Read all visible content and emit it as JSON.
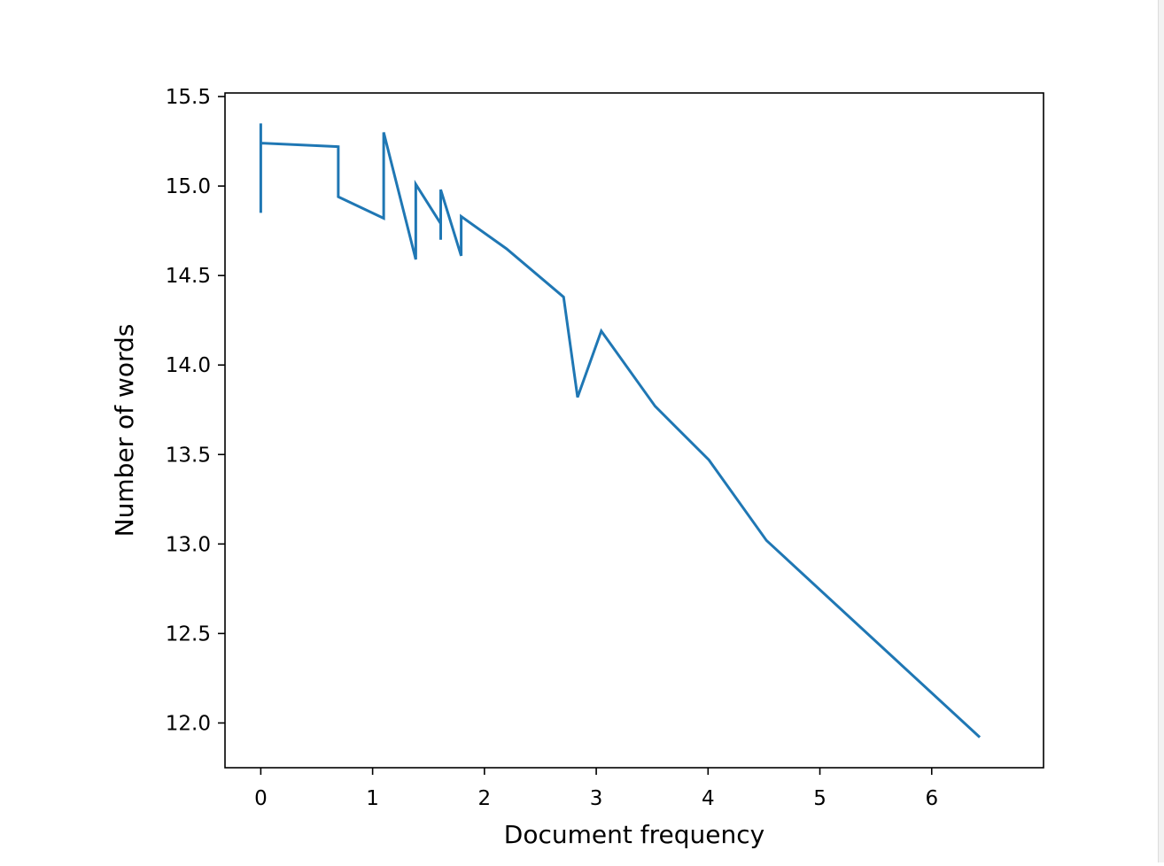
{
  "chart_data": {
    "type": "line",
    "title": "",
    "xlabel": "Document frequency",
    "ylabel": "Number of words",
    "xlim": [
      -0.32,
      7.0
    ],
    "ylim": [
      11.75,
      15.52
    ],
    "xticks": [
      0,
      1,
      2,
      3,
      4,
      5,
      6
    ],
    "xtick_labels": [
      "0",
      "1",
      "2",
      "3",
      "4",
      "5",
      "6"
    ],
    "yticks": [
      12.0,
      12.5,
      13.0,
      13.5,
      14.0,
      14.5,
      15.0,
      15.5
    ],
    "ytick_labels": [
      "12.0",
      "12.5",
      "13.0",
      "13.5",
      "14.0",
      "14.5",
      "15.0",
      "15.5"
    ],
    "grid": false,
    "legend": "none",
    "series": [
      {
        "color": "#1f77b4",
        "x": [
          0,
          0,
          0,
          0.693,
          0.693,
          1.099,
          1.099,
          1.386,
          1.386,
          1.609,
          1.609,
          1.609,
          1.792,
          1.792,
          2.197,
          2.708,
          2.833,
          3.045,
          3.526,
          4.007,
          4.522,
          5.198,
          6.43
        ],
        "y": [
          14.85,
          15.35,
          15.24,
          15.22,
          14.94,
          14.82,
          15.3,
          14.59,
          15.01,
          14.79,
          14.7,
          14.98,
          14.61,
          14.83,
          14.65,
          14.38,
          13.82,
          14.19,
          13.77,
          13.47,
          13.02,
          12.63,
          11.92
        ]
      }
    ]
  }
}
